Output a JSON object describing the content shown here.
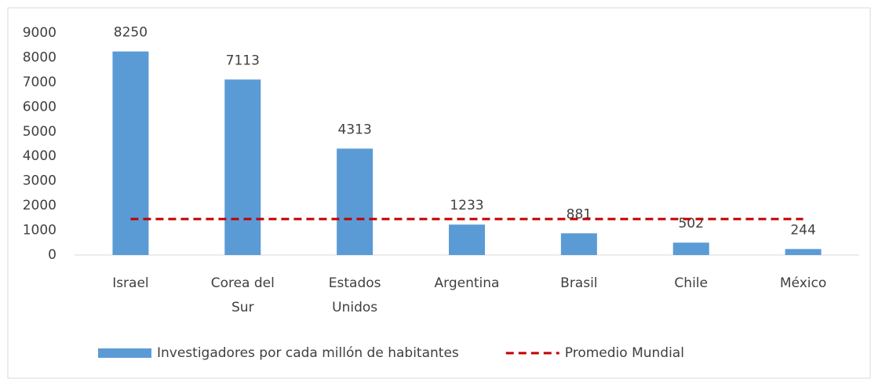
{
  "chart_data": {
    "type": "bar",
    "categories": [
      "Israel",
      "Corea del Sur",
      "Estados Unidos",
      "Argentina",
      "Brasil",
      "Chile",
      "México"
    ],
    "series": [
      {
        "name": "Investigadores por cada millón de habitantes",
        "type": "bar",
        "color": "#5b9bd5",
        "values": [
          8250,
          7113,
          4313,
          1233,
          881,
          502,
          244
        ],
        "data_labels": true
      },
      {
        "name": "Promedio Mundial",
        "type": "line",
        "color": "#c00000",
        "dashed": true,
        "values": [
          1460,
          1460,
          1460,
          1460,
          1460,
          1460,
          1460
        ]
      }
    ],
    "ylim": [
      0,
      9000
    ],
    "yticks": [
      0,
      1000,
      2000,
      3000,
      4000,
      5000,
      6000,
      7000,
      8000,
      9000
    ],
    "grid": false,
    "legend": "bottom"
  }
}
